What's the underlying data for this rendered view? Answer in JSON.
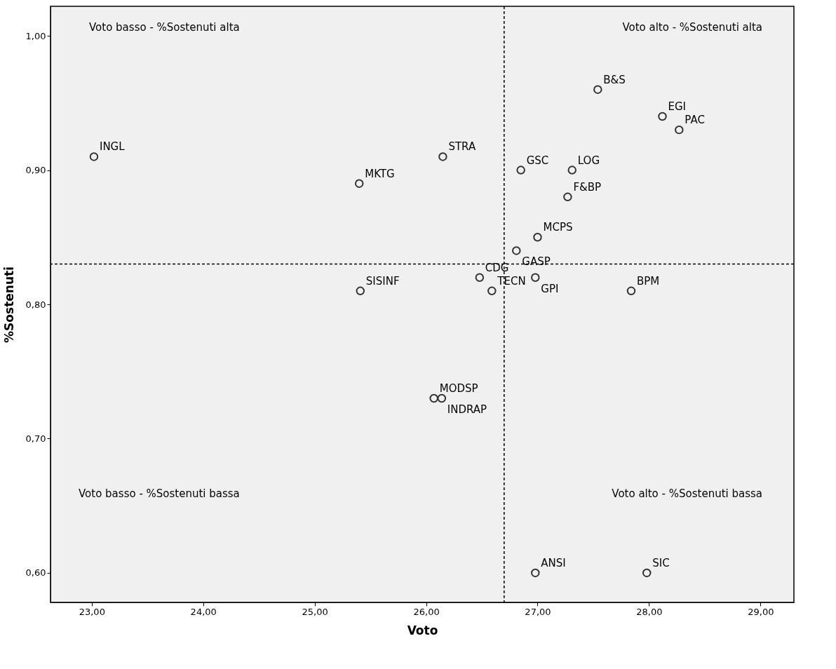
{
  "chart_data": {
    "type": "scatter",
    "xlabel": "Voto",
    "ylabel": "%Sostenuti",
    "marker": "circle",
    "grid": false,
    "xlim": [
      22.63,
      29.3
    ],
    "ylim": [
      0.578,
      1.022
    ],
    "xticks": [
      {
        "value": 23,
        "label": "23,00"
      },
      {
        "value": 24,
        "label": "24,00"
      },
      {
        "value": 25,
        "label": "25,00"
      },
      {
        "value": 26,
        "label": "26,00"
      },
      {
        "value": 27,
        "label": "27,00"
      },
      {
        "value": 28,
        "label": "28,00"
      },
      {
        "value": 29,
        "label": "29,00"
      }
    ],
    "yticks": [
      {
        "value": 0.6,
        "label": "0,60"
      },
      {
        "value": 0.7,
        "label": "0,70"
      },
      {
        "value": 0.8,
        "label": "0,80"
      },
      {
        "value": 0.9,
        "label": "0,90"
      },
      {
        "value": 1.0,
        "label": "1,00"
      }
    ],
    "series": [
      {
        "color": "#333333",
        "x": [
          23.02,
          25.4,
          26.15,
          25.41,
          26.48,
          26.59,
          26.07,
          26.14,
          26.81,
          27.0,
          26.85,
          27.31,
          27.27,
          26.98,
          27.84,
          27.54,
          28.12,
          28.27,
          26.98,
          27.98
        ],
        "values": [
          0.91,
          0.89,
          0.91,
          0.81,
          0.82,
          0.81,
          0.73,
          0.73,
          0.84,
          0.85,
          0.9,
          0.9,
          0.88,
          0.82,
          0.81,
          0.96,
          0.94,
          0.93,
          0.6,
          0.6
        ]
      }
    ],
    "ref_lines": [
      {
        "axis": "x",
        "value": 26.7,
        "line_style": "dashed"
      },
      {
        "axis": "y",
        "value": 0.83,
        "line_style": "dashed"
      }
    ],
    "annotations": [
      "Voto basso - %Sostenuti alta",
      "Voto alto - %Sostenuti alta",
      "Voto basso - %Sostenuti bassa",
      "Voto alto - %Sostenuti bassa",
      {
        "text": "INGL",
        "x": 23.02,
        "y": 0.91
      },
      {
        "text": "MKTG",
        "x": 25.4,
        "y": 0.89
      },
      {
        "text": "STRA",
        "x": 26.15,
        "y": 0.91
      },
      {
        "text": "SISINF",
        "x": 25.41,
        "y": 0.81
      },
      {
        "text": "CDG",
        "x": 26.48,
        "y": 0.82
      },
      {
        "text": "TECN",
        "x": 26.59,
        "y": 0.81
      },
      {
        "text": "MODSP",
        "x": 26.07,
        "y": 0.73
      },
      {
        "text": "INDRAP",
        "x": 26.14,
        "y": 0.73
      },
      {
        "text": "GASP",
        "x": 26.81,
        "y": 0.84
      },
      {
        "text": "MCPS",
        "x": 27.0,
        "y": 0.85
      },
      {
        "text": "GSC",
        "x": 26.85,
        "y": 0.9
      },
      {
        "text": "LOG",
        "x": 27.31,
        "y": 0.9
      },
      {
        "text": "F&BP",
        "x": 27.27,
        "y": 0.88
      },
      {
        "text": "GPI",
        "x": 26.98,
        "y": 0.82
      },
      {
        "text": "BPM",
        "x": 27.84,
        "y": 0.81
      },
      {
        "text": "B&S",
        "x": 27.54,
        "y": 0.96
      },
      {
        "text": "EGI",
        "x": 28.12,
        "y": 0.94
      },
      {
        "text": "PAC",
        "x": 28.27,
        "y": 0.93
      },
      {
        "text": "ANSI",
        "x": 26.98,
        "y": 0.6
      },
      {
        "text": "SIC",
        "x": 27.98,
        "y": 0.6
      }
    ]
  }
}
